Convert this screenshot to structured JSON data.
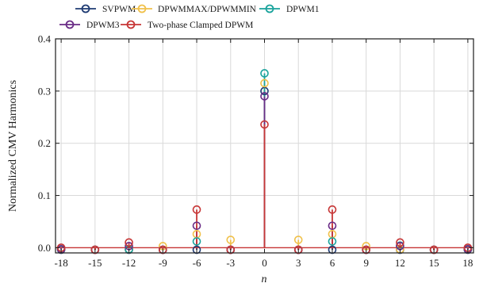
{
  "chart_data": {
    "type": "stem",
    "xlabel": "n",
    "ylabel": "Normalized CMV Harmonics",
    "xlim": [
      -18.5,
      18.5
    ],
    "ylim": [
      -0.01,
      0.4
    ],
    "x_ticks": [
      -18,
      -15,
      -12,
      -9,
      -6,
      -3,
      0,
      3,
      6,
      9,
      12,
      15,
      18
    ],
    "y_ticks": [
      0.0,
      0.1,
      0.2,
      0.3,
      0.4
    ],
    "y_tick_labels": [
      "0.0",
      "0.1",
      "0.2",
      "0.3",
      "0.4"
    ],
    "grid": true,
    "legend_position": "top",
    "series": [
      {
        "name": "SVPWM",
        "color": "#1f3b73",
        "points": [
          [
            -18,
            -0.004
          ],
          [
            -15,
            -0.004
          ],
          [
            -12,
            -0.004
          ],
          [
            -9,
            -0.004
          ],
          [
            -6,
            -0.004
          ],
          [
            -3,
            -0.004
          ],
          [
            0,
            0.3
          ],
          [
            3,
            -0.004
          ],
          [
            6,
            -0.004
          ],
          [
            9,
            -0.004
          ],
          [
            12,
            -0.004
          ],
          [
            15,
            -0.004
          ],
          [
            18,
            -0.004
          ]
        ]
      },
      {
        "name": "DPWMMAX/DPWMMIN",
        "color": "#f0c14b",
        "points": [
          [
            -18,
            -0.003
          ],
          [
            -15,
            -0.004
          ],
          [
            -12,
            -0.003
          ],
          [
            -9,
            0.003
          ],
          [
            -6,
            0.026
          ],
          [
            -3,
            0.015
          ],
          [
            0,
            0.315
          ],
          [
            3,
            0.015
          ],
          [
            6,
            0.026
          ],
          [
            9,
            0.003
          ],
          [
            12,
            -0.003
          ],
          [
            15,
            -0.004
          ],
          [
            18,
            -0.003
          ]
        ]
      },
      {
        "name": "DPWM1",
        "color": "#1aa39c",
        "points": [
          [
            -18,
            -0.003
          ],
          [
            -15,
            -0.004
          ],
          [
            -12,
            -0.003
          ],
          [
            -9,
            -0.004
          ],
          [
            -6,
            0.012
          ],
          [
            -3,
            -0.004
          ],
          [
            0,
            0.334
          ],
          [
            3,
            -0.004
          ],
          [
            6,
            0.012
          ],
          [
            9,
            -0.004
          ],
          [
            12,
            0.004
          ],
          [
            15,
            -0.004
          ],
          [
            18,
            -0.003
          ]
        ]
      },
      {
        "name": "DPWM3",
        "color": "#6a2c86",
        "points": [
          [
            -18,
            -0.003
          ],
          [
            -15,
            -0.004
          ],
          [
            -12,
            0.003
          ],
          [
            -9,
            -0.004
          ],
          [
            -6,
            0.042
          ],
          [
            -3,
            -0.004
          ],
          [
            0,
            0.29
          ],
          [
            3,
            -0.004
          ],
          [
            6,
            0.042
          ],
          [
            9,
            -0.004
          ],
          [
            12,
            0.003
          ],
          [
            15,
            -0.004
          ],
          [
            18,
            -0.003
          ]
        ]
      },
      {
        "name": "Two-phase Clamped DPWM",
        "color": "#c73636",
        "points": [
          [
            -18,
            0.0
          ],
          [
            -15,
            -0.004
          ],
          [
            -12,
            0.01
          ],
          [
            -9,
            -0.004
          ],
          [
            -6,
            0.073
          ],
          [
            -3,
            -0.004
          ],
          [
            0,
            0.236
          ],
          [
            3,
            -0.004
          ],
          [
            6,
            0.073
          ],
          [
            9,
            -0.004
          ],
          [
            12,
            0.01
          ],
          [
            15,
            -0.004
          ],
          [
            18,
            0.0
          ]
        ]
      }
    ]
  }
}
